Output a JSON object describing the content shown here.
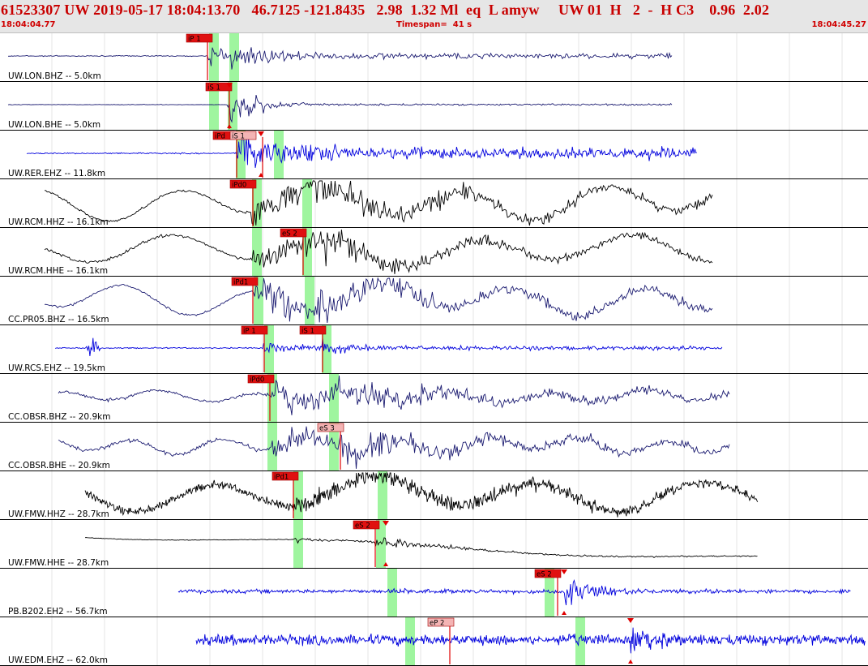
{
  "header": {
    "title": "61523307 UW 2019-05-17 18:04:13.70   46.7125 -121.8435   2.98  1.32 Ml  eq  L amyw     UW 01  H   2  -  H C3    0.96  2.02",
    "start_time": "18:04:04.77",
    "timespan": "Timespan=  41 s",
    "end_time": "18:04:45.27"
  },
  "colors": {
    "header_text": "#d00000",
    "pick_box": "#e01010",
    "pick_box_light": "#f4b4b4",
    "window_green": "#9ff59f",
    "trace_black": "#000000",
    "trace_navy": "#1a1a70",
    "trace_blue": "#0000dd"
  },
  "channels": [
    {
      "label": "UW.LON.BHZ -- 5.0km",
      "color": "#1a1a70",
      "picks": [
        {
          "text": "iP 1",
          "style": "dark"
        }
      ]
    },
    {
      "label": "UW.LON.BHE -- 5.0km",
      "color": "#1a1a70",
      "picks": [
        {
          "text": "iS 1",
          "style": "dark"
        }
      ]
    },
    {
      "label": "UW.RER.EHZ -- 11.8km",
      "color": "#0000dd",
      "picks": [
        {
          "text": "iPd",
          "style": "dark"
        },
        {
          "text": "iS 1",
          "style": "light"
        }
      ]
    },
    {
      "label": "UW.RCM.HHZ -- 16.1km",
      "color": "#000000",
      "picks": [
        {
          "text": "iPd0",
          "style": "dark"
        }
      ]
    },
    {
      "label": "UW.RCM.HHE -- 16.1km",
      "color": "#000000",
      "picks": [
        {
          "text": "eS 2",
          "style": "dark"
        }
      ]
    },
    {
      "label": "CC.PR05.BHZ -- 16.5km",
      "color": "#1a1a70",
      "picks": [
        {
          "text": "iPd1",
          "style": "dark"
        }
      ]
    },
    {
      "label": "UW.RCS.EHZ -- 19.5km",
      "color": "#0000dd",
      "picks": [
        {
          "text": "iP 1",
          "style": "dark"
        },
        {
          "text": "iS 1",
          "style": "dark"
        }
      ]
    },
    {
      "label": "CC.OBSR.BHZ -- 20.9km",
      "color": "#1a1a70",
      "picks": [
        {
          "text": "iPd0",
          "style": "dark"
        }
      ]
    },
    {
      "label": "CC.OBSR.BHE -- 20.9km",
      "color": "#1a1a70",
      "picks": [
        {
          "text": "eS 3",
          "style": "light"
        }
      ]
    },
    {
      "label": "UW.FMW.HHZ -- 28.7km",
      "color": "#000000",
      "picks": [
        {
          "text": "iPd1",
          "style": "dark"
        }
      ]
    },
    {
      "label": "UW.FMW.HHE -- 28.7km",
      "color": "#000000",
      "picks": [
        {
          "text": "eS 2",
          "style": "dark"
        }
      ]
    },
    {
      "label": "PB.B202.EH2 -- 56.7km",
      "color": "#0000dd",
      "picks": [
        {
          "text": "eS 2",
          "style": "dark"
        }
      ]
    },
    {
      "label": "UW.EDM.EHZ -- 62.0km",
      "color": "#0000dd",
      "picks": [
        {
          "text": "eP 2",
          "style": "light"
        }
      ]
    }
  ]
}
